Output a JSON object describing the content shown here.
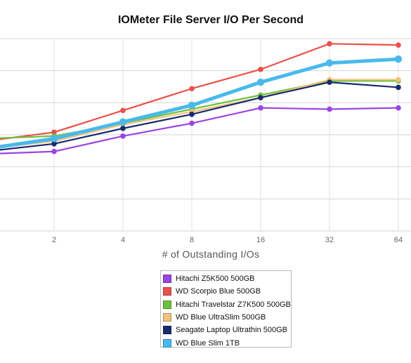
{
  "chart_data": {
    "type": "line",
    "title": "IOMeter File Server I/O Per Second",
    "xlabel": "# of Outstanding I/Os",
    "ylabel": "",
    "x": [
      1,
      2,
      4,
      8,
      16,
      32,
      64
    ],
    "x_tick_labels": [
      "2",
      "4",
      "8",
      "16",
      "32",
      "64"
    ],
    "x_scale": "log2",
    "ylim": [
      0,
      150
    ],
    "y_gridlines": [
      0,
      25,
      50,
      75,
      100,
      125,
      150
    ],
    "grid": true,
    "legend_position": "bottom-center",
    "series": [
      {
        "name": "Hitachi Z5K500 500GB",
        "color": "#9b45e4",
        "values": [
          60,
          62,
          74,
          84,
          96,
          95,
          96
        ]
      },
      {
        "name": "WD Scorpio Blue 500GB",
        "color": "#e8524a",
        "values": [
          70,
          77,
          94,
          111,
          126,
          146,
          145
        ]
      },
      {
        "name": "Hitachi Travelstar Z7K500 500GB",
        "color": "#6cc03e",
        "values": [
          72,
          74,
          84,
          95,
          106,
          117,
          117
        ]
      },
      {
        "name": "WD Blue UltraSlim 500GB",
        "color": "#f2c27d",
        "values": [
          64,
          70,
          83,
          93,
          104,
          118,
          118
        ]
      },
      {
        "name": "Seagate Laptop Ultrathin 500GB",
        "color": "#1a2b6e",
        "values": [
          62,
          68,
          80,
          91,
          104,
          116,
          112
        ]
      },
      {
        "name": "WD Blue Slim 1TB",
        "color": "#49b9ec",
        "values": [
          64,
          72,
          85,
          98,
          116,
          131,
          134
        ]
      }
    ]
  }
}
